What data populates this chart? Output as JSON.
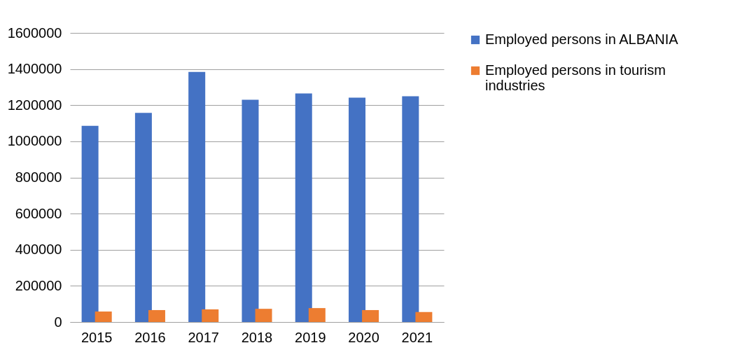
{
  "chart_data": {
    "type": "bar",
    "categories": [
      "2015",
      "2016",
      "2017",
      "2018",
      "2019",
      "2020",
      "2021"
    ],
    "series": [
      {
        "name": "Employed persons in ALBANIA",
        "color": "#4472c4",
        "values": [
          1086000,
          1157000,
          1384000,
          1230000,
          1265000,
          1242000,
          1249000
        ]
      },
      {
        "name": "Employed persons in tourism industries",
        "color": "#ed7d31",
        "values": [
          58000,
          66000,
          70000,
          73000,
          77000,
          66000,
          55000
        ]
      }
    ],
    "ylim": [
      0,
      1600000
    ],
    "yticks": [
      0,
      200000,
      400000,
      600000,
      800000,
      1000000,
      1200000,
      1400000,
      1600000
    ],
    "grid": "y",
    "legend": "right"
  }
}
